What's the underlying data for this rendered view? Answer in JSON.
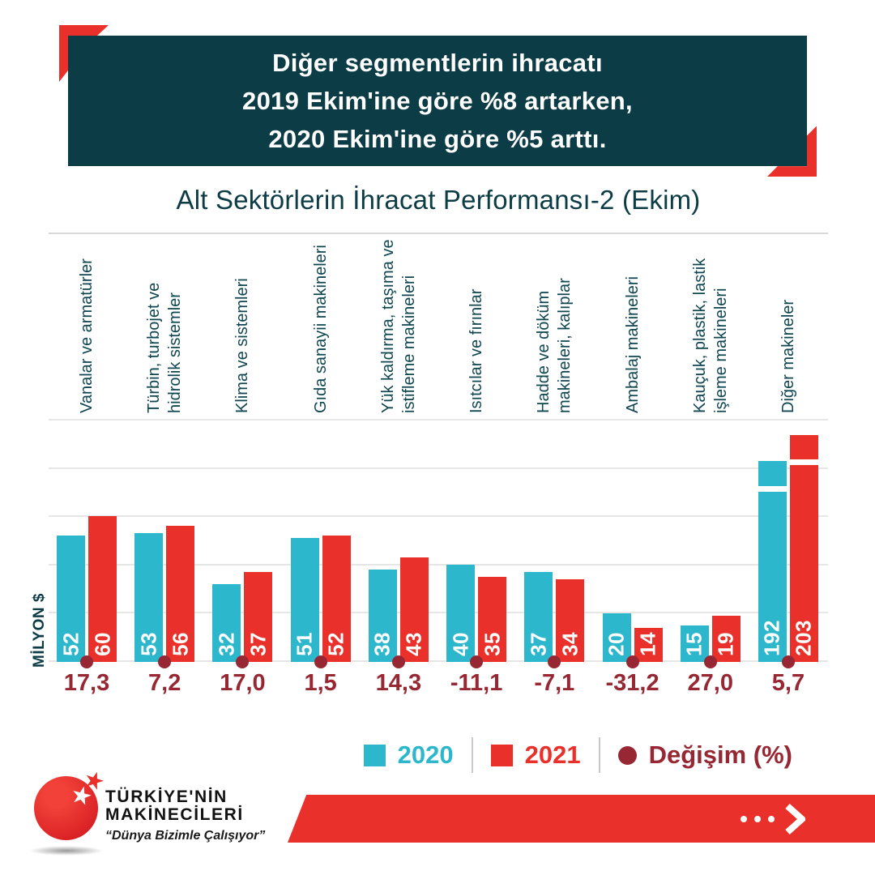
{
  "banner": {
    "line1": "Diğer segmentlerin ihracatı",
    "line2": "2019 Ekim'ine göre %8 artarken,",
    "line3": "2020 Ekim'ine göre %5 arttı."
  },
  "title": "Alt Sektörlerin İhracat Performansı-2 (Ekim)",
  "axis": {
    "y_label": "MİLYON $"
  },
  "legend": {
    "y2020": "2020",
    "y2021": "2021",
    "change": "Değişim (%)"
  },
  "logo": {
    "name_line1": "TÜRKİYE'NİN",
    "name_line2": "MAKİNECİLERİ",
    "tagline": "“Dünya Bizimle Çalışıyor”"
  },
  "colors": {
    "teal": "#0c3c45",
    "cyan": "#2cb7cd",
    "red": "#e9302a",
    "darkred": "#962733",
    "grid": "#e6e6e6"
  },
  "chart_data": {
    "type": "bar",
    "title": "Alt Sektörlerin İhracat Performansı-2 (Ekim)",
    "ylabel": "MİLYON $",
    "ylim": [
      0,
      100
    ],
    "grid_step": 20,
    "grid": true,
    "legend_position": "bottom-right",
    "axis_break_at_index": 9,
    "categories": [
      "Vanalar  ve armatürler",
      "Türbin, turbojet ve\nhidrolik sistemler",
      "Klima ve sistemleri",
      "Gıda sanayii makineleri",
      "Yük kaldırma, taşıma ve\nistifleme makineleri",
      "Isıtcılar ve fırınlar",
      "Hadde ve döküm\nmakineleri, kalıplar",
      "Ambalaj makineleri",
      "Kauçuk, plastik, lastik\nişleme makineleri",
      "Diğer makineler"
    ],
    "series": [
      {
        "name": "2020",
        "color": "#2cb7cd",
        "values": [
          52,
          53,
          32,
          51,
          38,
          40,
          37,
          20,
          15,
          192
        ]
      },
      {
        "name": "2021",
        "color": "#e9302a",
        "values": [
          60,
          56,
          37,
          52,
          43,
          35,
          34,
          14,
          19,
          203
        ]
      }
    ],
    "change_series": {
      "name": "Değişim (%)",
      "color": "#962733",
      "values": [
        17.3,
        7.2,
        17.0,
        1.5,
        14.3,
        -11.1,
        -7.1,
        -31.2,
        27.0,
        5.7
      ],
      "labels": [
        "17,3",
        "7,2",
        "17,0",
        "1,5",
        "14,3",
        "-11,1",
        "-7,1",
        "-31,2",
        "27,0",
        "5,7"
      ]
    }
  }
}
